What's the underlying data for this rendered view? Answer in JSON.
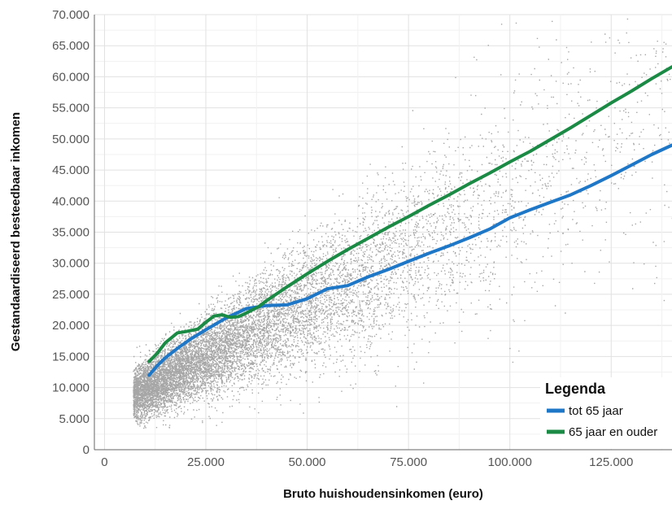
{
  "chart_data": {
    "type": "scatter",
    "xlabel": "Bruto huishoudensinkomen (euro)",
    "ylabel": "Gestandaardiseerd besteedbaar inkomen",
    "xlim": [
      -2500,
      140000
    ],
    "ylim": [
      0,
      70000
    ],
    "x_ticks": [
      0,
      25000,
      50000,
      75000,
      100000,
      125000
    ],
    "x_tick_labels": [
      "0",
      "25.000",
      "50.000",
      "75.000",
      "100.000",
      "125.000"
    ],
    "y_ticks": [
      0,
      5000,
      10000,
      15000,
      20000,
      25000,
      30000,
      35000,
      40000,
      45000,
      50000,
      55000,
      60000,
      65000,
      70000
    ],
    "y_tick_labels": [
      "0",
      "5.000",
      "10.000",
      "15.000",
      "20.000",
      "25.000",
      "30.000",
      "35.000",
      "40.000",
      "45.000",
      "50.000",
      "55.000",
      "60.000",
      "65.000",
      "70.000"
    ],
    "grid": true,
    "legend": {
      "title": "Legenda",
      "position": "bottom-right"
    },
    "scatter_color": "#a6a6a6",
    "series": [
      {
        "name": "tot 65 jaar",
        "color": "#1f77c8",
        "type": "line",
        "x": [
          11000,
          13000,
          15000,
          18000,
          21000,
          25000,
          30000,
          35000,
          40000,
          45000,
          50000,
          55000,
          60000,
          65000,
          70000,
          75000,
          80000,
          85000,
          90000,
          95000,
          100000,
          105000,
          110000,
          115000,
          120000,
          125000,
          130000,
          135000,
          140000
        ],
        "y": [
          12000,
          13500,
          14800,
          16300,
          17700,
          19300,
          21200,
          22700,
          23200,
          23300,
          24300,
          25900,
          26400,
          27800,
          29000,
          30300,
          31600,
          32800,
          34100,
          35500,
          37300,
          38600,
          39800,
          41000,
          42500,
          44100,
          45800,
          47500,
          49000
        ]
      },
      {
        "name": "65 jaar en ouder",
        "color": "#1a8a45",
        "type": "line",
        "x": [
          11000,
          13000,
          15000,
          18000,
          20000,
          23000,
          25000,
          27000,
          29000,
          31000,
          33000,
          35000,
          38000,
          40000,
          45000,
          50000,
          55000,
          60000,
          65000,
          70000,
          75000,
          80000,
          85000,
          90000,
          95000,
          100000,
          105000,
          110000,
          115000,
          120000,
          125000,
          130000,
          135000,
          140000
        ],
        "y": [
          14200,
          15500,
          17200,
          18800,
          19000,
          19400,
          20500,
          21500,
          21700,
          21300,
          21400,
          22000,
          23000,
          24000,
          26200,
          28300,
          30300,
          32200,
          34000,
          35800,
          37500,
          39300,
          41000,
          42800,
          44500,
          46300,
          48000,
          49900,
          51800,
          53800,
          55800,
          57700,
          59700,
          61600
        ]
      }
    ]
  }
}
